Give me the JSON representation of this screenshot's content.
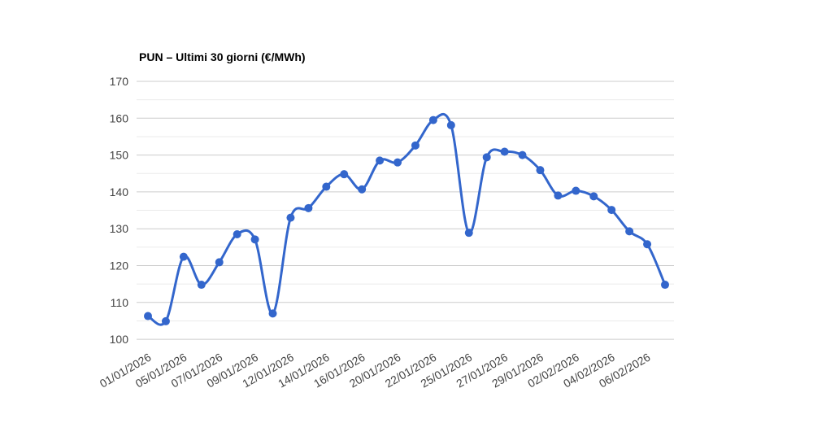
{
  "page": {
    "background": "#ffffff"
  },
  "chart_data": {
    "type": "line",
    "title": "PUN – Ultimi 30 giorni (€/MWh)",
    "xlabel": "",
    "ylabel": "",
    "legend_position": "none",
    "grid": true,
    "minor_gridlines": true,
    "smooth_curve": true,
    "ylim": [
      100,
      170
    ],
    "y_ticks": [
      100,
      110,
      120,
      130,
      140,
      150,
      160,
      170
    ],
    "x_tick_labels": [
      "01/01/2026",
      "05/01/2026",
      "07/01/2026",
      "09/01/2026",
      "12/01/2026",
      "14/01/2026",
      "16/01/2026",
      "20/01/2026",
      "22/01/2026",
      "25/01/2026",
      "27/01/2026",
      "29/01/2026",
      "02/02/2026",
      "04/02/2026",
      "06/02/2026"
    ],
    "x_label_every_n_points": 2,
    "x_label_rotation_deg": 30,
    "series": [
      {
        "name": "PUN",
        "color": "#3366cc",
        "values": [
          106.3,
          104.9,
          122.4,
          114.8,
          120.9,
          128.5,
          127.1,
          107.0,
          133.0,
          135.6,
          141.4,
          144.8,
          140.7,
          148.5,
          148.0,
          152.6,
          159.5,
          158.1,
          128.9,
          149.4,
          150.9,
          150.0,
          145.9,
          139.0,
          140.3,
          138.8,
          135.1,
          129.3,
          125.8,
          114.8
        ]
      }
    ],
    "colors": {
      "line": "#3366cc",
      "point": "#3366cc",
      "major_grid": "#cccccc",
      "minor_grid": "#ebebeb",
      "axis_text": "#444444",
      "title_text": "#000000",
      "background": "#ffffff"
    }
  }
}
